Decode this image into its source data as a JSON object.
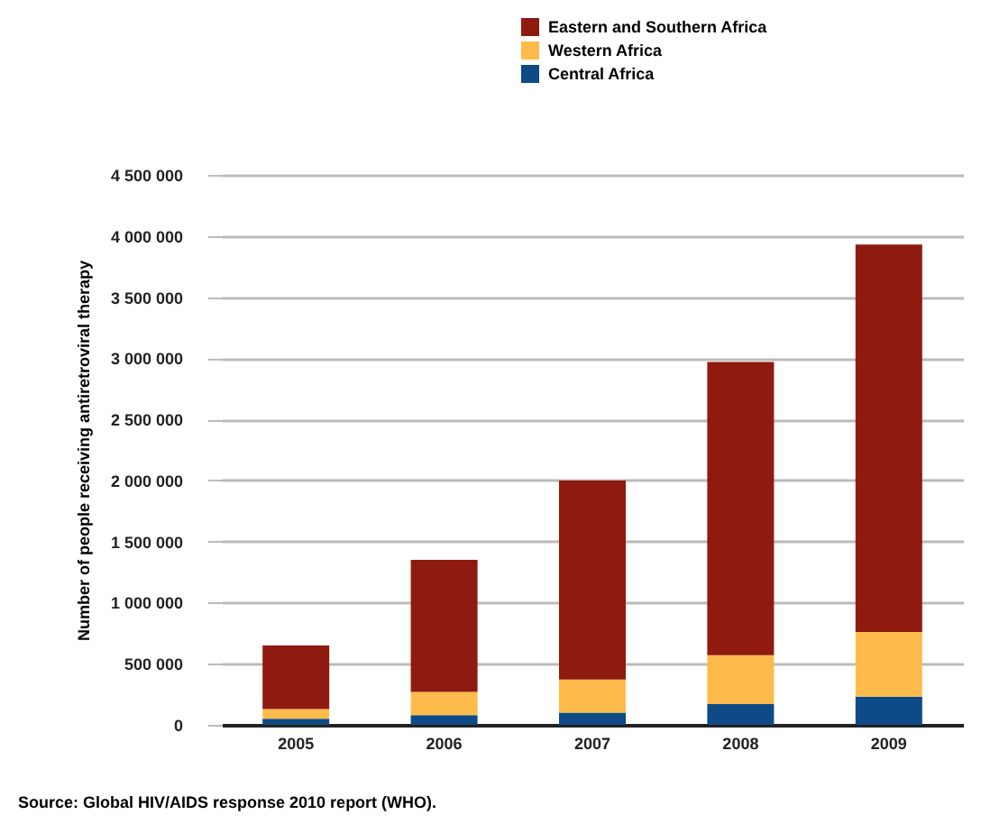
{
  "chart_data": {
    "type": "bar",
    "stacked": true,
    "categories": [
      "2005",
      "2006",
      "2007",
      "2008",
      "2009"
    ],
    "series": [
      {
        "name": "Central Africa",
        "color": "#0d4a86",
        "values": [
          50000,
          80000,
          100000,
          170000,
          230000
        ]
      },
      {
        "name": "Western Africa",
        "color": "#fdbb4b",
        "values": [
          80000,
          190000,
          270000,
          400000,
          530000
        ]
      },
      {
        "name": "Eastern and Southern Africa",
        "color": "#8e1a10",
        "values": [
          520000,
          1080000,
          1630000,
          2400000,
          3170000
        ]
      }
    ],
    "ylabel": "Number of people receiving antiretroviral therapy",
    "ylim": [
      0,
      4500000
    ],
    "yticks": [
      0,
      {
        "value": 500000,
        "label": "500 000"
      },
      {
        "value": 1000000,
        "label": "1 000 000"
      },
      {
        "value": 1500000,
        "label": "1 500 000"
      },
      {
        "value": 2000000,
        "label": "2 000 000"
      },
      {
        "value": 2500000,
        "label": "2 500 000"
      },
      {
        "value": 3000000,
        "label": "3 000 000"
      },
      {
        "value": 3500000,
        "label": "3 500 000"
      },
      {
        "value": 4000000,
        "label": "4 000 000"
      },
      {
        "value": 4500000,
        "label": "4 500 000"
      }
    ],
    "grid": "y",
    "legend": "top right",
    "annotations": [
      "Source: Global HIV/AIDS response 2010 report (WHO)."
    ]
  }
}
